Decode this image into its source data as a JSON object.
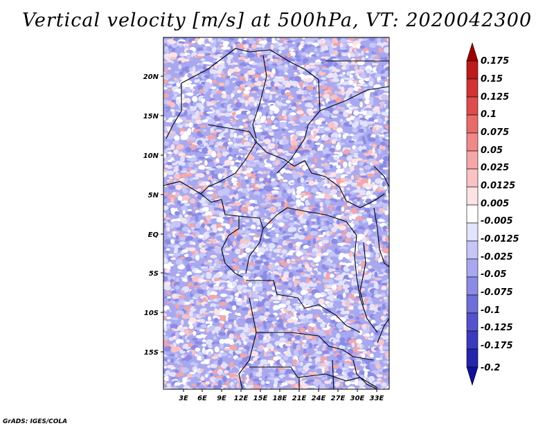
{
  "title": "Vertical velocity [m/s] at 500hPa, VT: 2020042300",
  "credit": "GrADS: IGES/COLA",
  "lat_labels": [
    "20N",
    "15N",
    "10N",
    "5N",
    "EQ",
    "5S",
    "10S",
    "15S"
  ],
  "lon_labels": [
    "3E",
    "6E",
    "9E",
    "12E",
    "15E",
    "18E",
    "21E",
    "24E",
    "27E",
    "30E",
    "33E"
  ],
  "colorbar": {
    "labels": [
      "0.175",
      "0.15",
      "0.125",
      "0.1",
      "0.075",
      "0.05",
      "0.025",
      "0.0125",
      "0.005",
      "-0.005",
      "-0.0125",
      "-0.025",
      "-0.05",
      "-0.075",
      "-0.1",
      "-0.125",
      "-0.175",
      "-0.2"
    ],
    "colors": [
      "#a00000",
      "#be1a1a",
      "#d23232",
      "#e04b4b",
      "#ea6a6a",
      "#f28787",
      "#f6a6a6",
      "#fac3c3",
      "#fde3e3",
      "#ffffff",
      "#e3e3fd",
      "#c6c6f8",
      "#a8a8f0",
      "#8b8be6",
      "#6e6edb",
      "#5353cf",
      "#3a3ac0",
      "#2424ae",
      "#10109c"
    ]
  },
  "palette": {
    "positive": "#e36b6b",
    "negative": "#7b7be4",
    "neutral": "#ffffff",
    "border": "#000000"
  }
}
